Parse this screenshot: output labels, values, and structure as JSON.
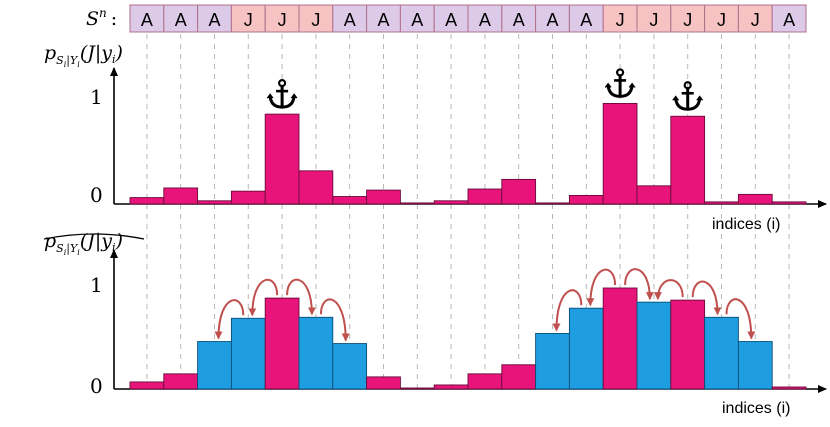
{
  "sequence": {
    "label_base": "S",
    "label_sup": "n",
    "label_colon": ":",
    "cells": [
      "A",
      "A",
      "A",
      "J",
      "J",
      "J",
      "A",
      "A",
      "A",
      "A",
      "A",
      "A",
      "A",
      "A",
      "J",
      "J",
      "J",
      "J",
      "J",
      "A"
    ]
  },
  "top_panel": {
    "ylabel_main": "p",
    "ylabel_sub": "S",
    "ylabel_subsub": "i",
    "ylabel_bar": "|Y",
    "ylabel_subsub2": "i",
    "ylabel_arg": "(J|y",
    "ylabel_argsub": "i",
    "ylabel_close": ")",
    "tick_1": "1",
    "tick_0": "0",
    "xlabel": "indices (i)"
  },
  "bottom_panel": {
    "ylabel_main": "p",
    "ylabel_sub": "S",
    "ylabel_subsub": "i",
    "ylabel_bar": "|Y",
    "ylabel_subsub2": "i",
    "ylabel_arg": "(J|y",
    "ylabel_argsub": "i",
    "ylabel_close": ")",
    "tick_1": "1",
    "tick_0": "0",
    "xlabel": "indices (i)"
  },
  "colors": {
    "A_fill": "#ddc9e8",
    "J_fill": "#f6c2c2",
    "cell_border": "#b0708c",
    "bar_magenta": "#e8147a",
    "bar_blue": "#1e9ee0",
    "arrow": "#c0504d",
    "grid": "#b8b8b8",
    "axis": "#000000"
  },
  "chart_data": [
    {
      "type": "bar",
      "x": [
        1,
        2,
        3,
        4,
        5,
        6,
        7,
        8,
        9,
        10,
        11,
        12,
        13,
        14,
        15,
        16,
        17,
        18,
        19,
        20
      ],
      "values": [
        0.06,
        0.15,
        0.03,
        0.12,
        0.84,
        0.31,
        0.07,
        0.13,
        0.01,
        0.03,
        0.14,
        0.23,
        0.01,
        0.08,
        0.94,
        0.17,
        0.82,
        0.02,
        0.09,
        0.02
      ],
      "anchors": [
        5,
        15,
        17
      ],
      "ylim": [
        0,
        1
      ],
      "yticks": [
        0,
        1
      ],
      "xlabel": "indices (i)"
    },
    {
      "type": "bar",
      "x": [
        1,
        2,
        3,
        4,
        5,
        6,
        7,
        8,
        9,
        10,
        11,
        12,
        13,
        14,
        15,
        16,
        17,
        18,
        19,
        20
      ],
      "values": [
        0.07,
        0.15,
        0.47,
        0.7,
        0.9,
        0.71,
        0.45,
        0.12,
        0.01,
        0.04,
        0.15,
        0.24,
        0.55,
        0.8,
        1.0,
        0.86,
        0.88,
        0.71,
        0.47,
        0.02
      ],
      "bar_colors": [
        "magenta",
        "magenta",
        "blue",
        "blue",
        "magenta",
        "blue",
        "blue",
        "magenta",
        "magenta",
        "magenta",
        "magenta",
        "magenta",
        "blue",
        "blue",
        "magenta",
        "blue",
        "magenta",
        "blue",
        "blue",
        "magenta"
      ],
      "arrow_pairs": [
        [
          5,
          4
        ],
        [
          5,
          6
        ],
        [
          6,
          7
        ],
        [
          4,
          3
        ],
        [
          15,
          14
        ],
        [
          15,
          16
        ],
        [
          14,
          13
        ],
        [
          17,
          16
        ],
        [
          17,
          18
        ],
        [
          18,
          19
        ]
      ],
      "ylim": [
        0,
        1
      ],
      "yticks": [
        0,
        1
      ],
      "xlabel": "indices (i)"
    }
  ]
}
